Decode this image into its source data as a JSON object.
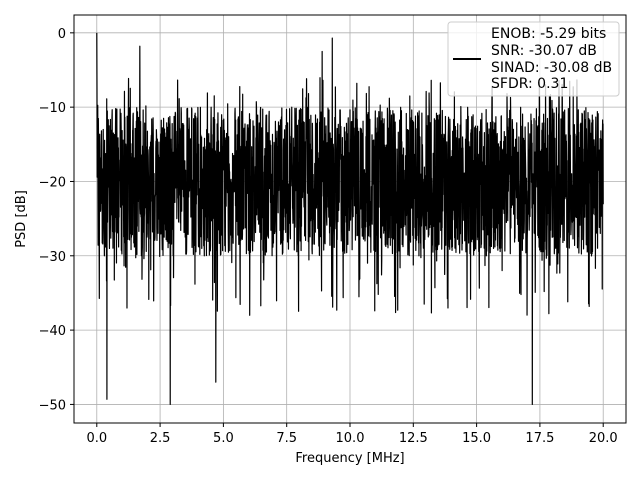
{
  "chart_data": {
    "type": "line",
    "title": "",
    "xlabel": "Frequency [MHz]",
    "ylabel": "PSD [dB]",
    "xlim": [
      -0.9,
      20.9
    ],
    "ylim": [
      -52.5,
      2.4
    ],
    "xticks": [
      0.0,
      2.5,
      5.0,
      7.5,
      10.0,
      12.5,
      15.0,
      17.5,
      20.0
    ],
    "xtick_labels": [
      "0.0",
      "2.5",
      "5.0",
      "7.5",
      "10.0",
      "12.5",
      "15.0",
      "17.5",
      "20.0"
    ],
    "yticks": [
      0,
      -10,
      -20,
      -30,
      -40,
      -50
    ],
    "ytick_labels": [
      "0",
      "−10",
      "−20",
      "−30",
      "−40",
      "−50"
    ],
    "grid": true,
    "legend_position": "top-right",
    "legend_lines": [
      "ENOB: -5.29 bits",
      "SNR: -30.07 dB",
      "SINAD: -30.08 dB",
      "SFDR: 0.31"
    ],
    "series": [
      {
        "color": "#000000",
        "x_range": [
          0.0,
          20.0
        ],
        "typical_range_db": [
          -30,
          -10
        ],
        "peak": {
          "x": 0.0,
          "y": 0.0
        },
        "notable_highs": [
          {
            "x": 9.3,
            "y": -0.7
          },
          {
            "x": 8.9,
            "y": -2.5
          },
          {
            "x": 1.7,
            "y": -1.8
          }
        ],
        "notable_lows": [
          {
            "x": 2.9,
            "y": -50.0
          },
          {
            "x": 17.2,
            "y": -50.0
          },
          {
            "x": 0.4,
            "y": -49.3
          },
          {
            "x": 4.7,
            "y": -47.0
          }
        ]
      }
    ]
  },
  "colors": {
    "line": "#000000",
    "grid": "#b0b0b0"
  }
}
